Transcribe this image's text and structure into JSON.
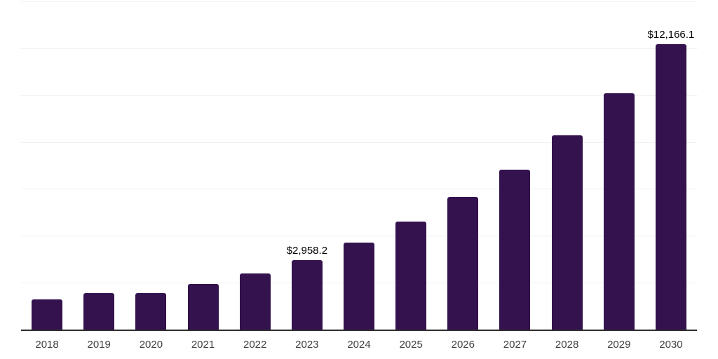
{
  "chart_data": {
    "type": "bar",
    "title": "",
    "xlabel": "",
    "ylabel": "",
    "categories": [
      "2018",
      "2019",
      "2020",
      "2021",
      "2022",
      "2023",
      "2024",
      "2025",
      "2026",
      "2027",
      "2028",
      "2029",
      "2030"
    ],
    "values": [
      1285,
      1545,
      1565,
      1930,
      2380,
      2958.2,
      3695,
      4600,
      5650,
      6810,
      8290,
      10080,
      12166.1
    ],
    "value_labels": {
      "2023": "$2,958.2",
      "2030": "$12,166.1"
    },
    "ylim": [
      0,
      14000
    ],
    "grid_step": 2000,
    "grid": "horizontal-only",
    "legend_position": "none",
    "y_tick_labels_visible": false,
    "colors": {
      "bar": "#34124e",
      "grid": "#f0f0f0",
      "axis": "#2e2e2e",
      "tick_label": "#3f3f3f",
      "data_label": "#000000",
      "background": "#ffffff"
    }
  }
}
